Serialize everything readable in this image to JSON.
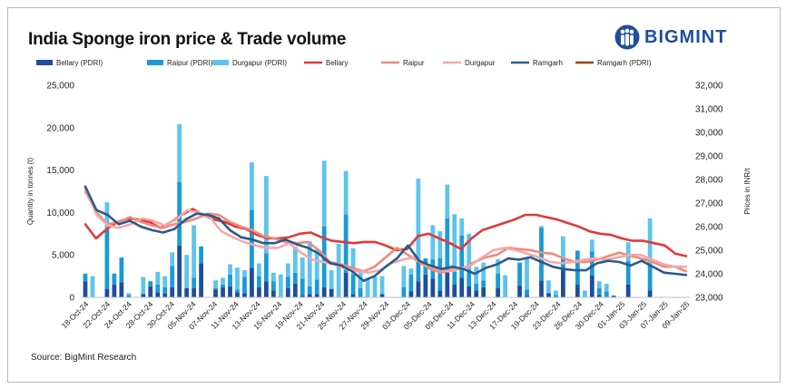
{
  "header": {
    "title": "India Sponge iron price & Trade volume"
  },
  "logo": {
    "text": "BIGMINT",
    "icon": "bigmint-people-icon",
    "color": "#1f4e9b"
  },
  "footer": {
    "source": "Source: BigMint Research"
  },
  "chart_data": {
    "type": "bar+line",
    "title": "India Sponge iron price & Trade volume",
    "ylabel": "Quantity in tonnes (t)",
    "y2label": "Prices in INR/t",
    "ylim": [
      0,
      25000
    ],
    "yticks": [
      0,
      5000,
      10000,
      15000,
      20000,
      25000
    ],
    "ytick_labels": [
      "0",
      "5,000",
      "10,000",
      "15,000",
      "20,000",
      "25,000"
    ],
    "y2lim": [
      23000,
      32000
    ],
    "y2ticks": [
      23000,
      24000,
      25000,
      26000,
      27000,
      28000,
      29000,
      30000,
      31000,
      32000
    ],
    "y2tick_labels": [
      "23,000",
      "24,000",
      "25,000",
      "26,000",
      "27,000",
      "28,000",
      "29,000",
      "30,000",
      "31,000",
      "32,000"
    ],
    "xtick_labels": [
      "18-Oct-24",
      "22-Oct-24",
      "24-Oct-24",
      "28-Oct-24",
      "30-Oct-24",
      "05-Nov-24",
      "07-Nov-24",
      "11-Nov-24",
      "13-Nov-24",
      "15-Nov-24",
      "19-Nov-24",
      "21-Nov-24",
      "25-Nov-24",
      "27-Nov-24",
      "29-Nov-24",
      "03-Dec-24",
      "05-Dec-24",
      "09-Dec-24",
      "11-Dec-24",
      "13-Dec-24",
      "17-Dec-24",
      "19-Dec-24",
      "23-Dec-24",
      "26-Dec-24",
      "30-Dec-24",
      "01-Jan-25",
      "03-Jan-25",
      "07-Jan-25",
      "09-Jan-25"
    ],
    "grid": false,
    "legend_position": "top",
    "legend": [
      {
        "name": "Bellary (PDRI)",
        "kind": "bar",
        "color": "#1f4e9b"
      },
      {
        "name": "Raipur (PDRI)",
        "kind": "bar",
        "color": "#1a9ad6"
      },
      {
        "name": "Durgapur (PDRI)",
        "kind": "bar",
        "color": "#5ec4ec"
      },
      {
        "name": "Bellary",
        "kind": "line",
        "color": "#e03a3a"
      },
      {
        "name": "Raipur",
        "kind": "line",
        "color": "#f08a7c"
      },
      {
        "name": "Durgapur",
        "kind": "line",
        "color": "#f5a8a8"
      },
      {
        "name": "Ramgarh",
        "kind": "line",
        "color": "#2d5a8a"
      },
      {
        "name": "Ramgarh (PDRI)",
        "kind": "line",
        "color": "#8b4a10"
      }
    ],
    "bar_series": [
      {
        "name": "Bellary (PDRI)",
        "color": "#1f4e9b",
        "values": [
          1900,
          0,
          0,
          1000,
          1500,
          1800,
          100,
          0,
          400,
          1300,
          600,
          500,
          1200,
          6100,
          1100,
          1100,
          4000,
          0,
          900,
          1200,
          1300,
          600,
          500,
          3500,
          1200,
          1900,
          800,
          0,
          1100,
          1600,
          200,
          400,
          400,
          1200,
          1000,
          0,
          2900,
          400,
          0,
          0,
          0,
          400,
          0,
          0,
          0,
          700,
          1900,
          2700,
          2200,
          800,
          3000,
          1500,
          2300,
          1300,
          800,
          1200,
          0,
          1100,
          0,
          0,
          1400,
          200,
          0,
          2000,
          500,
          100,
          3200,
          0,
          1500,
          0,
          2600,
          300,
          0,
          200,
          0,
          1500,
          0,
          0,
          800,
          0,
          0,
          0,
          0,
          0
        ]
      },
      {
        "name": "Raipur (PDRI)",
        "color": "#1a9ad6",
        "values": [
          900,
          0,
          0,
          7000,
          1300,
          2900,
          200,
          0,
          0,
          600,
          900,
          700,
          2500,
          7500,
          0,
          1200,
          2000,
          0,
          200,
          300,
          1400,
          300,
          1900,
          6800,
          1300,
          3300,
          1100,
          0,
          1300,
          1300,
          2000,
          900,
          1700,
          7200,
          0,
          0,
          6900,
          2300,
          1100,
          0,
          0,
          0,
          0,
          0,
          1200,
          2000,
          2300,
          1900,
          2300,
          3800,
          6300,
          1500,
          5000,
          2000,
          800,
          800,
          0,
          1700,
          0,
          0,
          2700,
          700,
          0,
          6200,
          0,
          200,
          1500,
          0,
          4000,
          0,
          2800,
          800,
          700,
          0,
          0,
          2800,
          0,
          0,
          3000,
          0,
          0,
          0,
          0,
          0
        ]
      },
      {
        "name": "Durgapur (PDRI)",
        "color": "#5ec4ec",
        "values": [
          0,
          2500,
          0,
          3200,
          0,
          0,
          200,
          0,
          2000,
          0,
          1500,
          1300,
          1600,
          6800,
          3900,
          6200,
          0,
          0,
          900,
          800,
          1200,
          2600,
          800,
          5600,
          1500,
          9100,
          1000,
          2700,
          1600,
          3100,
          2500,
          5300,
          3500,
          7700,
          2200,
          6300,
          5100,
          3100,
          1800,
          2300,
          2400,
          2100,
          0,
          0,
          2500,
          700,
          9800,
          0,
          4000,
          3200,
          4000,
          6800,
          2000,
          4200,
          2000,
          2100,
          0,
          1700,
          2600,
          0,
          0,
          3600,
          0,
          200,
          1500,
          500,
          2500,
          0,
          0,
          800,
          1400,
          800,
          900,
          0,
          0,
          2200,
          0,
          0,
          5500,
          0,
          0,
          0,
          0,
          0
        ]
      }
    ],
    "line_series": [
      {
        "name": "Bellary",
        "color": "#e03a3a",
        "values": [
          26100,
          25500,
          25900,
          26200,
          26350,
          26300,
          26200,
          25950,
          26200,
          26500,
          26750,
          26500,
          26300,
          26200,
          26000,
          25900,
          25650,
          25500,
          25500,
          25550,
          25700,
          25750,
          25550,
          25400,
          25350,
          25300,
          25350,
          25350,
          25200,
          25000,
          25050,
          25600,
          25700,
          25500,
          25300,
          25050,
          25500,
          25850,
          26000,
          26150,
          26300,
          26500,
          26500,
          26400,
          26300,
          26150,
          26000,
          25800,
          25700,
          25650,
          25500,
          25400,
          25400,
          25300,
          25200,
          24850,
          24750
        ]
      },
      {
        "name": "Raipur",
        "color": "#f08a7c",
        "values": [
          27500,
          26600,
          26100,
          26200,
          26400,
          26200,
          26050,
          25950,
          26100,
          26200,
          26350,
          26550,
          26500,
          26200,
          26000,
          25850,
          25600,
          25500,
          25350,
          25300,
          25350,
          25000,
          24500,
          24400,
          24250,
          24100,
          24300,
          24700,
          25100,
          24800,
          24500,
          24200,
          24050,
          24200,
          24250,
          24500,
          24700,
          24800,
          25100,
          25050,
          25000,
          24900,
          24850,
          24650,
          24500,
          24500,
          24600,
          24750,
          24900,
          24750,
          24650,
          24500,
          24300,
          24300,
          24100
        ]
      },
      {
        "name": "Durgapur",
        "color": "#f5a8a8",
        "values": [
          27600,
          26500,
          26050,
          25950,
          26100,
          26350,
          26250,
          26050,
          26300,
          26700,
          26600,
          26400,
          25800,
          25550,
          25350,
          25200,
          25100,
          25100,
          25300,
          24900,
          24600,
          24500,
          24400,
          24200,
          24100,
          24050,
          24150,
          24450,
          24600,
          24700,
          24400,
          24200,
          24100,
          24200,
          24350,
          24700,
          25000,
          25100,
          25000,
          24850,
          24700,
          24500,
          24450,
          24500,
          24600,
          24650,
          24600,
          24700,
          24800,
          24800,
          24600,
          24400,
          24300,
          24300
        ]
      },
      {
        "name": "Ramgarh",
        "color": "#2d5a8a",
        "values": [
          27700,
          26700,
          26500,
          26100,
          26250,
          26000,
          25850,
          25750,
          25900,
          26300,
          26550,
          26500,
          26350,
          25850,
          25550,
          25450,
          25300,
          25300,
          25450,
          25250,
          25100,
          24850,
          24450,
          24350,
          24100,
          23700,
          23900,
          24300,
          24650,
          25200,
          24550,
          24350,
          24200,
          24300,
          24200,
          24000,
          24250,
          24400,
          24650,
          24600,
          24700,
          24500,
          24300,
          24200,
          24150,
          24150,
          24450,
          24550,
          24500,
          24350,
          24550,
          24300,
          24050,
          24000,
          23950
        ]
      },
      {
        "name": "Ramgarh (PDRI)",
        "color": "#8b4a10",
        "values": []
      }
    ]
  }
}
